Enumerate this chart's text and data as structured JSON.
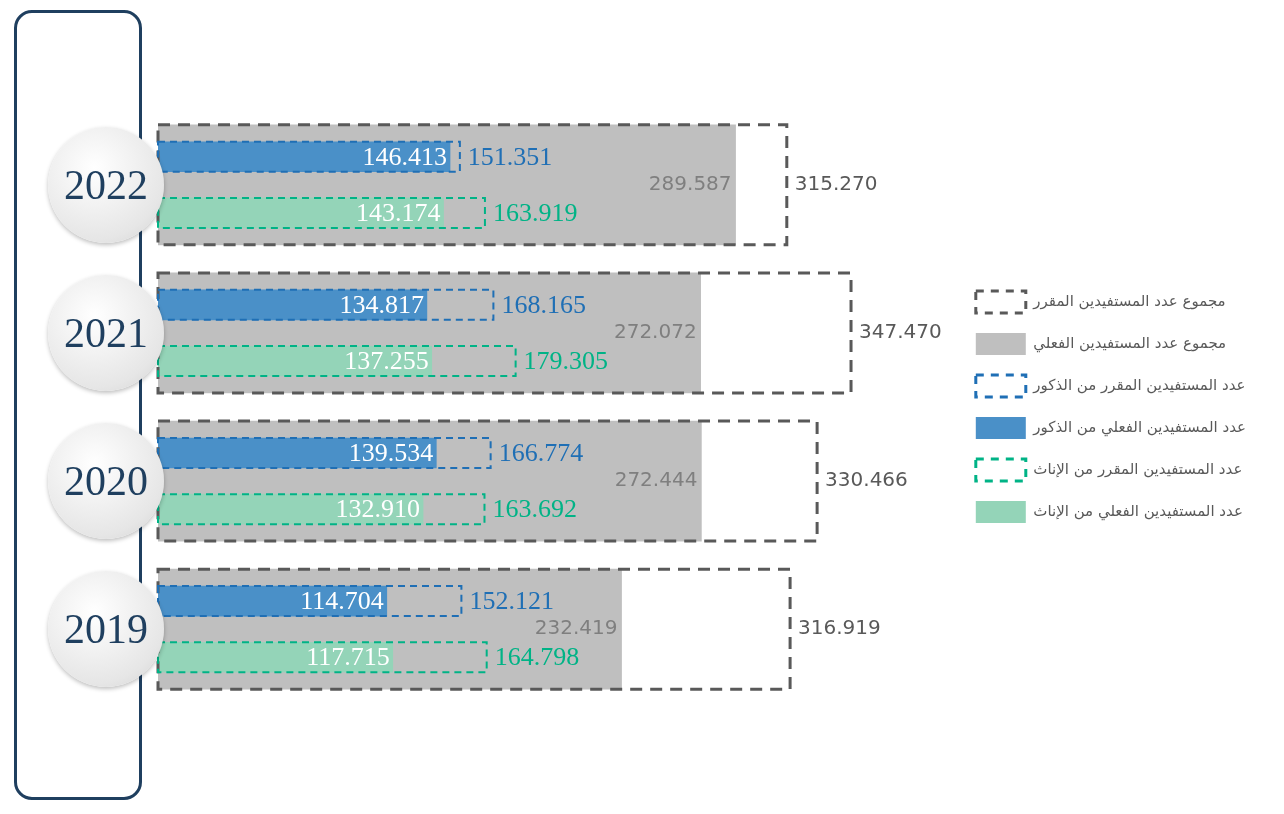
{
  "chart_data": {
    "type": "bar",
    "orientation": "horizontal",
    "categories": [
      "2022",
      "2021",
      "2020",
      "2019"
    ],
    "legend": "right",
    "series": [
      {
        "name": "مجموع عدد المستفيدين المقرر",
        "color": "#595959",
        "line_style": "dashed",
        "values": [
          315.27,
          347.47,
          330.466,
          316.919
        ],
        "value_labels": [
          "315.270",
          "347.470",
          "330.466",
          "316.919"
        ]
      },
      {
        "name": "مجموع عدد المستفيدين الفعلي",
        "color": "#bfbfbf",
        "values": [
          289.587,
          272.072,
          272.444,
          232.419
        ],
        "value_labels": [
          "289.587",
          "272.072",
          "272.444",
          "232.419"
        ]
      },
      {
        "name": "عدد المستفيدين المقرر من الذكور",
        "color": "#1f6fb5",
        "line_style": "dashed",
        "values": [
          151.351,
          168.165,
          166.774,
          152.121
        ],
        "value_labels": [
          "151.351",
          "168.165",
          "166.774",
          "152.121"
        ]
      },
      {
        "name": "عدد المستفيدين الفعلي من الذكور",
        "color": "#4a90c8",
        "values": [
          146.413,
          134.817,
          139.534,
          114.704
        ],
        "value_labels": [
          "146.413",
          "134.817",
          "139.534",
          "114.704"
        ]
      },
      {
        "name": "عدد المستفيدين المقرر من الإناث",
        "color": "#00b386",
        "line_style": "dashed",
        "values": [
          163.919,
          179.305,
          163.692,
          164.798
        ],
        "value_labels": [
          "163.919",
          "179.305",
          "163.692",
          "164.798"
        ]
      },
      {
        "name": "عدد المستفيدين الفعلي من الإناث",
        "color": "#94d4b8",
        "values": [
          143.174,
          137.255,
          132.91,
          117.715
        ],
        "value_labels": [
          "143.174",
          "137.255",
          "132.910",
          "117.715"
        ]
      }
    ]
  }
}
